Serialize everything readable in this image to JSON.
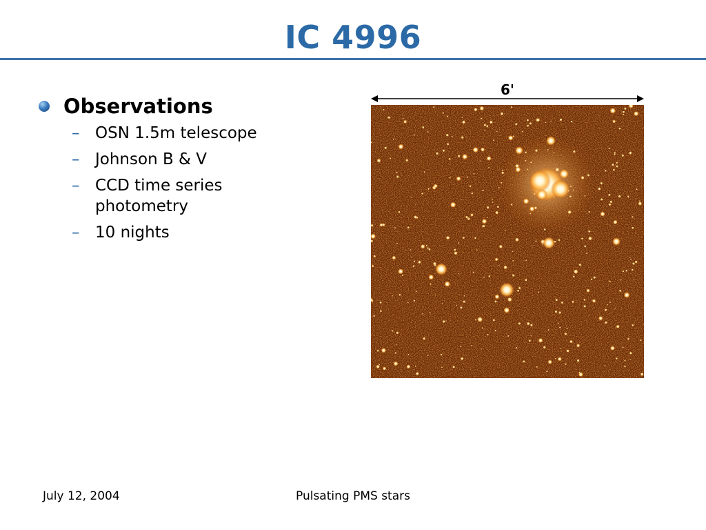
{
  "slide": {
    "title": "IC 4996",
    "bullet": "Observations",
    "sub_items": [
      "OSN 1.5m telescope",
      "Johnson B & V",
      "CCD time series photometry",
      "10 nights"
    ],
    "dash": "–"
  },
  "image": {
    "scale_label": "6'"
  },
  "footer": {
    "date": "July 12, 2004",
    "title": "Pulsating PMS stars"
  },
  "colors": {
    "title": "#2b6aa6",
    "rule": "#3f74a8",
    "image_background": "#6a2a05",
    "star": "#fff4c8"
  }
}
